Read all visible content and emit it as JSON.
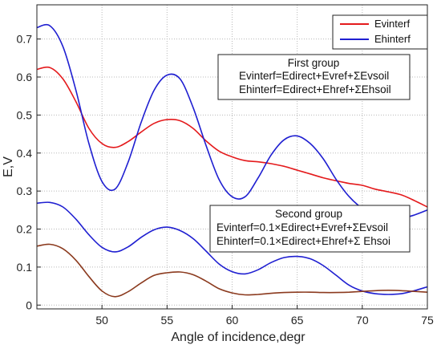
{
  "chart_data": {
    "type": "line",
    "xlabel": "Angle of incidence,degr",
    "ylabel": "E,V",
    "xlim": [
      45,
      75
    ],
    "ylim": [
      -0.01,
      0.79
    ],
    "x_ticks": [
      50,
      55,
      60,
      65,
      70,
      75
    ],
    "y_ticks": [
      0,
      0.1,
      0.2,
      0.3,
      0.4,
      0.5,
      0.6,
      0.7
    ],
    "x_tick_labels": [
      "50",
      "55",
      "60",
      "65",
      "70",
      "75"
    ],
    "y_tick_labels": [
      "0",
      "0.1",
      "0.2",
      "0.3",
      "0.4",
      "0.5",
      "0.6",
      "0.7"
    ],
    "grid": true,
    "legend_position": "top-right",
    "legend": [
      {
        "label": "Evinterf",
        "color": "#e41a1c"
      },
      {
        "label": "Ehinterf",
        "color": "#1f1fd1"
      }
    ],
    "annotations": [
      {
        "lines": [
          "First group",
          "Evinterf=Edirect+Evref+ΣEvsoil",
          "Ehinterf=Edirect+Ehref+ΣEhsoil"
        ]
      },
      {
        "lines": [
          "Second group",
          "Evinterf=0.1×Edirect+Evref+ΣEvsoil",
          "Ehinterf=0.1×Edirect+Ehref+Σ Ehsoi"
        ]
      }
    ],
    "series": [
      {
        "group": "first",
        "legend_label": "Evinterf",
        "color": "#e41a1c",
        "x": [
          45,
          46,
          47,
          48,
          49,
          50,
          51,
          52,
          53,
          54,
          55,
          56,
          57,
          58,
          59,
          60,
          61,
          62,
          63,
          64,
          65,
          66,
          67,
          68,
          69,
          70,
          71,
          72,
          73,
          74,
          75
        ],
        "y": [
          0.62,
          0.625,
          0.595,
          0.535,
          0.465,
          0.425,
          0.415,
          0.43,
          0.455,
          0.478,
          0.488,
          0.485,
          0.465,
          0.432,
          0.405,
          0.39,
          0.38,
          0.377,
          0.372,
          0.365,
          0.355,
          0.345,
          0.335,
          0.327,
          0.32,
          0.315,
          0.305,
          0.298,
          0.29,
          0.275,
          0.258
        ]
      },
      {
        "group": "first",
        "legend_label": "Ehinterf",
        "color": "#1f1fd1",
        "x": [
          45,
          46,
          47,
          48,
          49,
          50,
          51,
          52,
          53,
          54,
          55,
          56,
          57,
          58,
          59,
          60,
          61,
          62,
          63,
          64,
          65,
          66,
          67,
          68,
          69,
          70,
          71,
          72,
          73,
          74,
          75
        ],
        "y": [
          0.73,
          0.735,
          0.68,
          0.565,
          0.425,
          0.325,
          0.305,
          0.375,
          0.48,
          0.565,
          0.605,
          0.595,
          0.52,
          0.42,
          0.33,
          0.285,
          0.285,
          0.335,
          0.395,
          0.435,
          0.445,
          0.425,
          0.385,
          0.33,
          0.285,
          0.255,
          0.24,
          0.228,
          0.228,
          0.237,
          0.25
        ]
      },
      {
        "group": "second",
        "color": "#1f1fd1",
        "x": [
          45,
          46,
          47,
          48,
          49,
          50,
          51,
          52,
          53,
          54,
          55,
          56,
          57,
          58,
          59,
          60,
          61,
          62,
          63,
          64,
          65,
          66,
          67,
          68,
          69,
          70,
          71,
          72,
          73,
          74,
          75
        ],
        "y": [
          0.268,
          0.27,
          0.258,
          0.226,
          0.185,
          0.152,
          0.14,
          0.153,
          0.178,
          0.198,
          0.205,
          0.196,
          0.175,
          0.142,
          0.108,
          0.088,
          0.082,
          0.093,
          0.112,
          0.125,
          0.128,
          0.122,
          0.104,
          0.078,
          0.052,
          0.037,
          0.03,
          0.028,
          0.03,
          0.038,
          0.048
        ]
      },
      {
        "group": "second",
        "color": "#8b3a1e",
        "x": [
          45,
          46,
          47,
          48,
          49,
          50,
          51,
          52,
          53,
          54,
          55,
          56,
          57,
          58,
          59,
          60,
          61,
          62,
          63,
          64,
          65,
          66,
          67,
          68,
          69,
          70,
          71,
          72,
          73,
          74,
          75
        ],
        "y": [
          0.155,
          0.16,
          0.148,
          0.118,
          0.075,
          0.037,
          0.022,
          0.035,
          0.058,
          0.078,
          0.085,
          0.087,
          0.08,
          0.063,
          0.043,
          0.032,
          0.027,
          0.028,
          0.031,
          0.033,
          0.034,
          0.034,
          0.033,
          0.033,
          0.034,
          0.036,
          0.038,
          0.039,
          0.038,
          0.036,
          0.034
        ]
      }
    ]
  }
}
